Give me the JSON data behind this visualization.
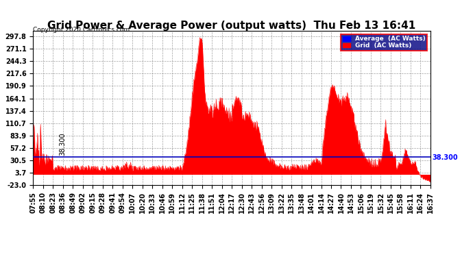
{
  "title": "Grid Power & Average Power (output watts)  Thu Feb 13 16:41",
  "copyright": "Copyright 2020 Cartronics.com",
  "legend_labels": [
    "Average  (AC Watts)",
    "Grid  (AC Watts)"
  ],
  "legend_colors": [
    "#0000ff",
    "#ff0000"
  ],
  "avg_line_color": "#0000bb",
  "grid_fill_color": "#ff0000",
  "background_color": "#ffffff",
  "plot_bg_color": "#ffffff",
  "yticks": [
    -23.0,
    3.7,
    30.5,
    57.2,
    83.9,
    110.7,
    137.4,
    164.1,
    190.9,
    217.6,
    244.3,
    271.1,
    297.8
  ],
  "ymin": -23.0,
  "ymax": 310.0,
  "avg_reference": 38.3,
  "title_fontsize": 11,
  "tick_label_fontsize": 7,
  "x_labels": [
    "07:55",
    "08:10",
    "08:23",
    "08:36",
    "08:49",
    "09:02",
    "09:15",
    "09:28",
    "09:41",
    "09:54",
    "10:07",
    "10:20",
    "10:33",
    "10:46",
    "10:59",
    "11:12",
    "11:25",
    "11:38",
    "11:51",
    "12:04",
    "12:17",
    "12:30",
    "12:43",
    "12:56",
    "13:09",
    "13:22",
    "13:35",
    "13:48",
    "14:01",
    "14:14",
    "14:27",
    "14:40",
    "14:53",
    "15:06",
    "15:19",
    "15:32",
    "15:45",
    "15:58",
    "16:11",
    "16:24",
    "16:37"
  ]
}
